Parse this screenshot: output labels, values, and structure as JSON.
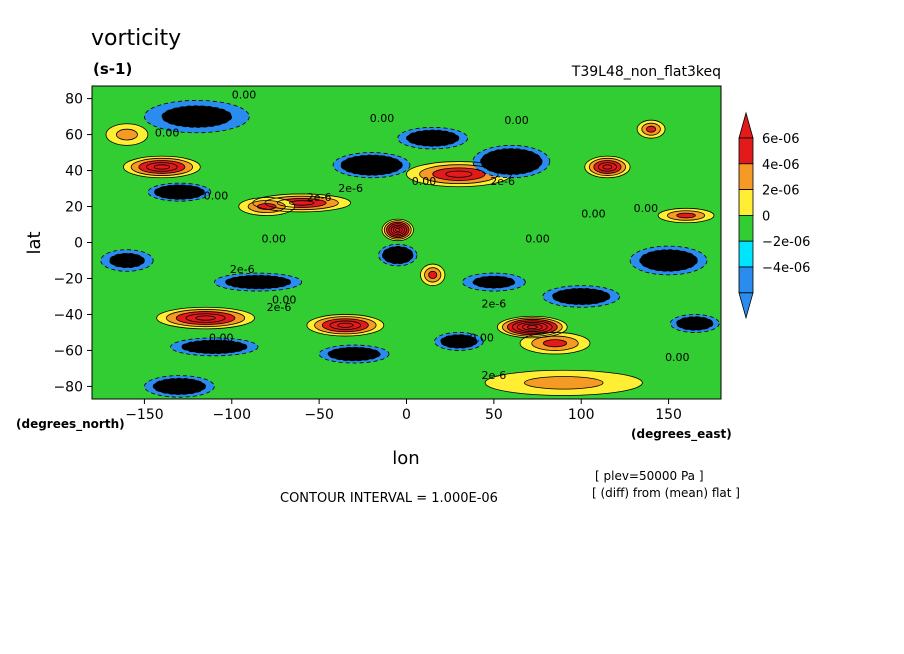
{
  "chart_data": {
    "type": "contour",
    "title": "vorticity",
    "units": "(s-1)",
    "run_label": "T39L48_non_flat3keq",
    "xlabel": "lon",
    "ylabel": "lat",
    "x_units": "(degrees_east)",
    "y_units": "(degrees_north)",
    "xlim": [
      -180,
      180
    ],
    "ylim": [
      -87,
      87
    ],
    "x_ticks": [
      -150,
      -100,
      -50,
      0,
      50,
      100,
      150
    ],
    "y_ticks": [
      80,
      60,
      40,
      20,
      0,
      -20,
      -40,
      -60,
      -80
    ],
    "x_tick_labels": [
      "−150",
      "−100",
      "−50",
      "0",
      "50",
      "100",
      "150"
    ],
    "y_tick_labels": [
      "80",
      "60",
      "40",
      "20",
      "0",
      "−20",
      "−40",
      "−60",
      "−80"
    ],
    "contour_interval_text": "CONTOUR INTERVAL = 1.000E-06",
    "notes": [
      "[ plev=50000 Pa ]",
      "[ (diff) from (mean) flat ]"
    ],
    "colorbar": {
      "levels": [
        {
          "label": "6e-06",
          "color": "#e31a1c"
        },
        {
          "label": "4e-06",
          "color": "#f59b25"
        },
        {
          "label": "2e-06",
          "color": "#ffee33"
        },
        {
          "label": "0",
          "color": "#32cd32"
        },
        {
          "label": "−2e-06",
          "color": "#00e5ff"
        },
        {
          "label": "−4e-06",
          "color": "#2b8cf0"
        }
      ],
      "arrow_top_color": "#e31a1c",
      "arrow_bottom_color": "#2b8cf0"
    },
    "contour_labels": [
      {
        "text": "0.00",
        "lon": -93,
        "lat": 80
      },
      {
        "text": "0.00",
        "lon": -137,
        "lat": 59
      },
      {
        "text": "0.00",
        "lon": -14,
        "lat": 67
      },
      {
        "text": "0.00",
        "lon": 63,
        "lat": 66
      },
      {
        "text": "0.00",
        "lon": -109,
        "lat": 24
      },
      {
        "text": "0.00",
        "lon": 10,
        "lat": 32
      },
      {
        "text": "2e-6",
        "lon": -32,
        "lat": 28
      },
      {
        "text": "2e-6",
        "lon": -50,
        "lat": 23
      },
      {
        "text": "2e-6",
        "lon": 55,
        "lat": 32
      },
      {
        "text": "0.00",
        "lon": 107,
        "lat": 14
      },
      {
        "text": "0.00",
        "lon": 137,
        "lat": 17
      },
      {
        "text": "0.00",
        "lon": -76,
        "lat": 0
      },
      {
        "text": "0.00",
        "lon": 75,
        "lat": 0
      },
      {
        "text": "2e-6",
        "lon": -94,
        "lat": -17
      },
      {
        "text": "0.00",
        "lon": -70,
        "lat": -34
      },
      {
        "text": "2e-6",
        "lon": -73,
        "lat": -38
      },
      {
        "text": "2e-6",
        "lon": 50,
        "lat": -36
      },
      {
        "text": "0.00",
        "lon": -106,
        "lat": -55
      },
      {
        "text": "0.00",
        "lon": 43,
        "lat": -55
      },
      {
        "text": "0.00",
        "lon": 155,
        "lat": -66
      },
      {
        "text": "2e-6",
        "lon": 50,
        "lat": -76
      }
    ],
    "features": [
      {
        "lon": -140,
        "lat": 42,
        "value": 5.0,
        "rx": 22,
        "ry": 6
      },
      {
        "lon": 115,
        "lat": 42,
        "value": 4.5,
        "rx": 13,
        "ry": 6
      },
      {
        "lon": 30,
        "lat": 38,
        "value": 4.0,
        "rx": 30,
        "ry": 7
      },
      {
        "lon": -60,
        "lat": 22,
        "value": 3.8,
        "rx": 28,
        "ry": 5
      },
      {
        "lon": -80,
        "lat": 20,
        "value": 2.5,
        "rx": 16,
        "ry": 5
      },
      {
        "lon": -5,
        "lat": 7,
        "value": 7.0,
        "rx": 9,
        "ry": 6
      },
      {
        "lon": 15,
        "lat": -18,
        "value": 3.0,
        "rx": 7,
        "ry": 6
      },
      {
        "lon": -115,
        "lat": -42,
        "value": 5.0,
        "rx": 28,
        "ry": 6
      },
      {
        "lon": -35,
        "lat": -46,
        "value": 4.5,
        "rx": 22,
        "ry": 6
      },
      {
        "lon": 72,
        "lat": -47,
        "value": 7.0,
        "rx": 20,
        "ry": 6
      },
      {
        "lon": 85,
        "lat": -56,
        "value": 3.2,
        "rx": 20,
        "ry": 6
      },
      {
        "lon": 160,
        "lat": 15,
        "value": 2.8,
        "rx": 16,
        "ry": 4
      },
      {
        "lon": -160,
        "lat": 60,
        "value": 2.0,
        "rx": 12,
        "ry": 6
      },
      {
        "lon": 140,
        "lat": 63,
        "value": 2.5,
        "rx": 8,
        "ry": 5
      },
      {
        "lon": 90,
        "lat": -78,
        "value": 1.5,
        "rx": 45,
        "ry": 7
      },
      {
        "lon": -130,
        "lat": 28,
        "value": -5.0,
        "rx": 18,
        "ry": 5
      },
      {
        "lon": 60,
        "lat": 45,
        "value": -5.0,
        "rx": 22,
        "ry": 9
      },
      {
        "lon": 15,
        "lat": 58,
        "value": -3.5,
        "rx": 20,
        "ry": 6
      },
      {
        "lon": -20,
        "lat": 43,
        "value": -4.5,
        "rx": 22,
        "ry": 7
      },
      {
        "lon": -120,
        "lat": 70,
        "value": -3.0,
        "rx": 30,
        "ry": 9
      },
      {
        "lon": -5,
        "lat": -7,
        "value": -5.0,
        "rx": 11,
        "ry": 6
      },
      {
        "lon": 150,
        "lat": -10,
        "value": -3.5,
        "rx": 22,
        "ry": 8
      },
      {
        "lon": -85,
        "lat": -22,
        "value": -4.0,
        "rx": 25,
        "ry": 5
      },
      {
        "lon": 100,
        "lat": -30,
        "value": -4.0,
        "rx": 22,
        "ry": 6
      },
      {
        "lon": -160,
        "lat": -10,
        "value": -3.0,
        "rx": 15,
        "ry": 6
      },
      {
        "lon": -110,
        "lat": -58,
        "value": -4.0,
        "rx": 25,
        "ry": 5
      },
      {
        "lon": -30,
        "lat": -62,
        "value": -3.5,
        "rx": 20,
        "ry": 5
      },
      {
        "lon": 30,
        "lat": -55,
        "value": -4.0,
        "rx": 14,
        "ry": 5
      },
      {
        "lon": -130,
        "lat": -80,
        "value": -4.0,
        "rx": 20,
        "ry": 6
      },
      {
        "lon": 165,
        "lat": -45,
        "value": -3.5,
        "rx": 14,
        "ry": 5
      },
      {
        "lon": 50,
        "lat": -22,
        "value": -2.8,
        "rx": 18,
        "ry": 5
      }
    ]
  }
}
